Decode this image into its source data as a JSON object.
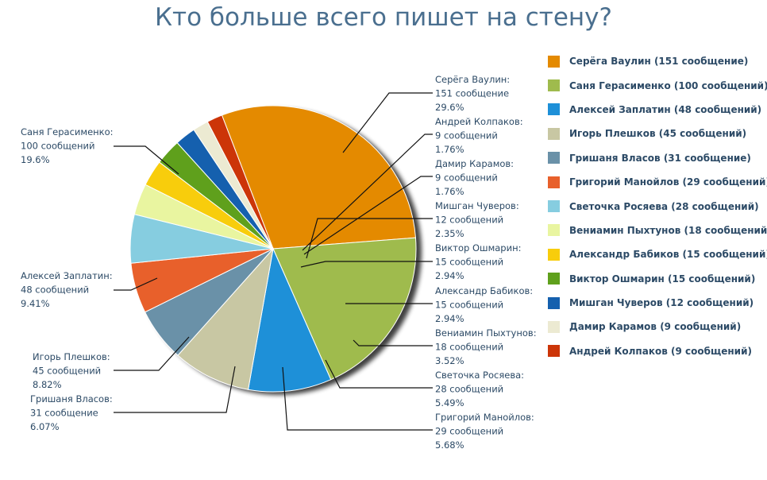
{
  "colors": {
    "title": "#4a6f8f",
    "label": "#2c4a66"
  },
  "chart_data": {
    "type": "pie",
    "title": "Кто больше всего пишет на стену?",
    "legend_position": "right",
    "slices": [
      {
        "name": "Серёга Ваулин",
        "value": 151,
        "count_text": "151 сообщение",
        "percent": "29.6%",
        "legend": "Серёга Ваулин (151 сообщение)",
        "color": "#e48a00"
      },
      {
        "name": "Саня Герасименко",
        "value": 100,
        "count_text": "100 сообщений",
        "percent": "19.6%",
        "legend": "Саня Герасименко (100 сообщений)",
        "color": "#9fbb4d"
      },
      {
        "name": "Алексей Заплатин",
        "value": 48,
        "count_text": "48 сообщений",
        "percent": "9.41%",
        "legend": "Алексей Заплатин (48 сообщений)",
        "color": "#1e90d8"
      },
      {
        "name": "Игорь Плешков",
        "value": 45,
        "count_text": "45 сообщений",
        "percent": "8.82%",
        "legend": "Игорь Плешков (45 сообщений)",
        "color": "#c8c7a3"
      },
      {
        "name": "Гришаня Власов",
        "value": 31,
        "count_text": "31 сообщение",
        "percent": "6.07%",
        "legend": "Гришаня Власов (31 сообщение)",
        "color": "#6a91a8"
      },
      {
        "name": "Григорий Манойлов",
        "value": 29,
        "count_text": "29 сообщений",
        "percent": "5.68%",
        "legend": "Григорий Манойлов (29 сообщений)",
        "color": "#e8602b"
      },
      {
        "name": "Светочка Росяева",
        "value": 28,
        "count_text": "28 сообщений",
        "percent": "5.49%",
        "legend": "Светочка Росяева (28 сообщений)",
        "color": "#86cde0"
      },
      {
        "name": "Вениамин Пыхтунов",
        "value": 18,
        "count_text": "18 сообщений",
        "percent": "3.52%",
        "legend": "Вениамин Пыхтунов (18 сообщений)",
        "color": "#e9f5a0"
      },
      {
        "name": "Александр Бабиков",
        "value": 15,
        "count_text": "15 сообщений",
        "percent": "2.94%",
        "legend": "Александр Бабиков (15 сообщений)",
        "color": "#f8cd0c"
      },
      {
        "name": "Виктор Ошмарин",
        "value": 15,
        "count_text": "15 сообщений",
        "percent": "2.94%",
        "legend": "Виктор Ошмарин (15 сообщений)",
        "color": "#5fa01c"
      },
      {
        "name": "Мишган Чуверов",
        "value": 12,
        "count_text": "12 сообщений",
        "percent": "2.35%",
        "legend": "Мишган Чуверов (12 сообщений)",
        "color": "#1560ae"
      },
      {
        "name": "Дамир Карамов",
        "value": 9,
        "count_text": "9 сообщений",
        "percent": "1.76%",
        "legend": "Дамир Карамов (9 сообщений)",
        "color": "#ecead2"
      },
      {
        "name": "Андрей Колпаков",
        "value": 9,
        "count_text": "9 сообщений",
        "percent": "1.76%",
        "legend": "Андрей Колпаков (9 сообщений)",
        "color": "#cc3508"
      }
    ]
  }
}
